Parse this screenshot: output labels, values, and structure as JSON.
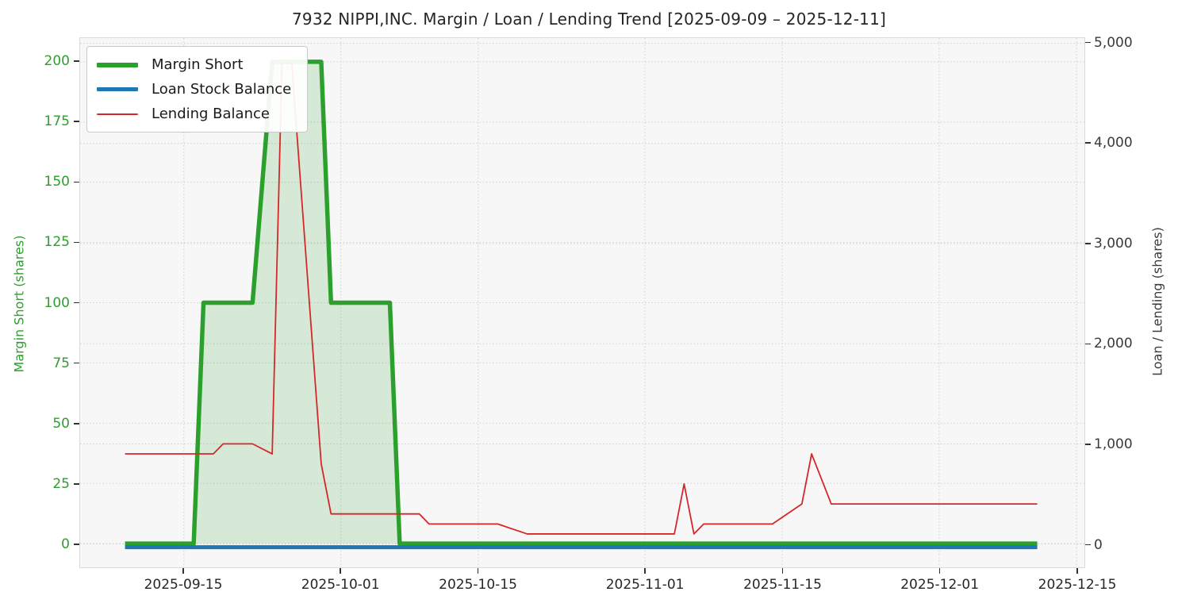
{
  "title": "7932 NIPPI,INC. Margin / Loan / Lending Trend [2025-09-09 – 2025-12-11]",
  "chart_data": {
    "type": "line",
    "title": "7932 NIPPI,INC. Margin / Loan / Lending Trend [2025-09-09 – 2025-12-11]",
    "grid": "dotted",
    "legend_position": "upper-left",
    "background": {
      "figure": "#ffffff",
      "plot": "#f7f7f8",
      "grid": "#d2d2d2"
    },
    "x_axis": {
      "type": "date",
      "data_range": [
        "2025-09-09",
        "2025-12-11"
      ],
      "axis_range": [
        "2025-09-04",
        "2025-12-16"
      ],
      "ticks": [
        "2025-09-15",
        "2025-10-01",
        "2025-10-15",
        "2025-11-01",
        "2025-11-15",
        "2025-12-01",
        "2025-12-15"
      ]
    },
    "y_left": {
      "label": "Margin Short (shares)",
      "color": "#2ca02c",
      "ticks": [
        0,
        25,
        50,
        75,
        100,
        125,
        150,
        175,
        200
      ],
      "range": [
        -10,
        210
      ]
    },
    "y_right": {
      "label": "Loan / Lending (shares)",
      "color": "#3a3a3a",
      "ticks": [
        0,
        1000,
        2000,
        3000,
        4000,
        5000
      ],
      "tick_labels": [
        "0",
        "1,000",
        "2,000",
        "3,000",
        "4,000",
        "5,000"
      ],
      "range": [
        -255,
        5285
      ]
    },
    "series": [
      {
        "name": "Margin Short",
        "axis": "left",
        "color": "#2ca02c",
        "line_width": 5.5,
        "fill": true,
        "fill_color": "rgba(44,160,44,0.16)",
        "points": [
          [
            "2025-09-09",
            0
          ],
          [
            "2025-09-16",
            0
          ],
          [
            "2025-09-17",
            100
          ],
          [
            "2025-09-22",
            100
          ],
          [
            "2025-09-24",
            200
          ],
          [
            "2025-09-29",
            200
          ],
          [
            "2025-09-30",
            100
          ],
          [
            "2025-10-06",
            100
          ],
          [
            "2025-10-07",
            0
          ],
          [
            "2025-12-11",
            0
          ]
        ]
      },
      {
        "name": "Loan Stock Balance",
        "axis": "right",
        "color": "#1f77b4",
        "line_width": 5,
        "fill": false,
        "points": [
          [
            "2025-09-09",
            0
          ],
          [
            "2025-12-11",
            0
          ]
        ]
      },
      {
        "name": "Lending Balance",
        "axis": "right",
        "color": "#d62728",
        "line_width": 1.8,
        "fill": false,
        "points": [
          [
            "2025-09-09",
            900
          ],
          [
            "2025-09-18",
            900
          ],
          [
            "2025-09-19",
            1000
          ],
          [
            "2025-09-22",
            1000
          ],
          [
            "2025-09-24",
            900
          ],
          [
            "2025-09-25",
            4800
          ],
          [
            "2025-09-26",
            4800
          ],
          [
            "2025-09-29",
            800
          ],
          [
            "2025-09-30",
            300
          ],
          [
            "2025-10-09",
            300
          ],
          [
            "2025-10-10",
            200
          ],
          [
            "2025-10-17",
            200
          ],
          [
            "2025-10-20",
            100
          ],
          [
            "2025-11-04",
            100
          ],
          [
            "2025-11-05",
            600
          ],
          [
            "2025-11-06",
            100
          ],
          [
            "2025-11-07",
            200
          ],
          [
            "2025-11-14",
            200
          ],
          [
            "2025-11-17",
            400
          ],
          [
            "2025-11-18",
            900
          ],
          [
            "2025-11-19",
            650
          ],
          [
            "2025-11-20",
            400
          ],
          [
            "2025-12-11",
            400
          ]
        ]
      }
    ]
  },
  "legend": {
    "items": [
      "Margin Short",
      "Loan Stock Balance",
      "Lending Balance"
    ]
  }
}
